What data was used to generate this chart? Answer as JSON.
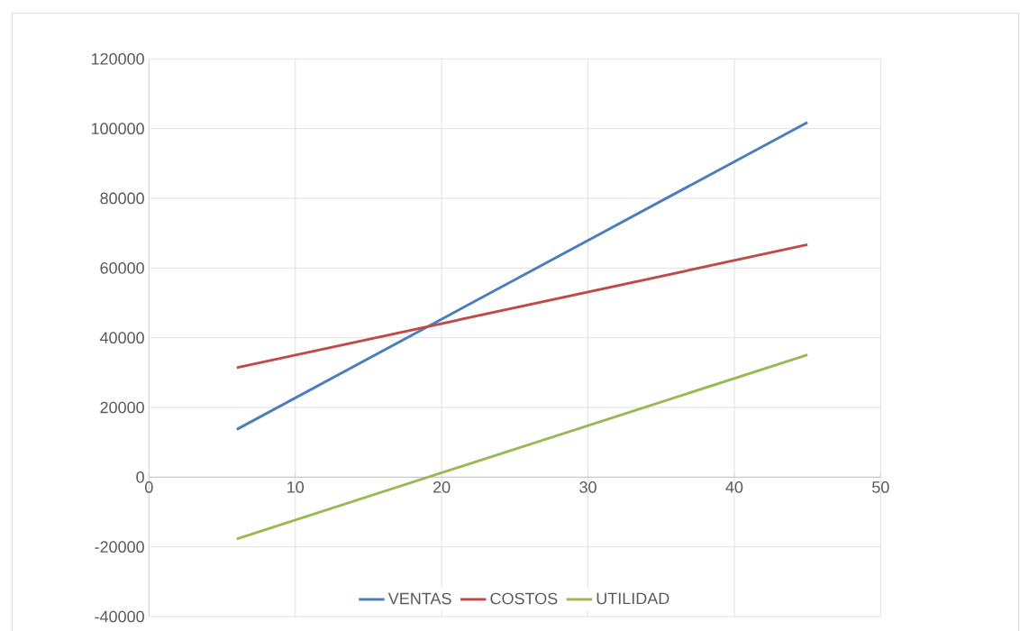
{
  "chart_data": {
    "type": "line",
    "x": [
      6,
      45
    ],
    "series": [
      {
        "name": "VENTAS",
        "color": "#4a7ebb",
        "values": [
          13700,
          101800
        ]
      },
      {
        "name": "COSTOS",
        "color": "#be4b48",
        "values": [
          31400,
          66700
        ]
      },
      {
        "name": "UTILIDAD",
        "color": "#98b954",
        "values": [
          -17700,
          35100
        ]
      }
    ],
    "xlim": [
      0,
      50
    ],
    "xticks": [
      0,
      10,
      20,
      30,
      40,
      50
    ],
    "ylim": [
      -40000,
      120000
    ],
    "yticks": [
      -40000,
      -20000,
      0,
      20000,
      40000,
      60000,
      80000,
      100000,
      120000
    ],
    "grid": true,
    "legend": "bottom",
    "marker": "none",
    "line_style": "solid"
  }
}
